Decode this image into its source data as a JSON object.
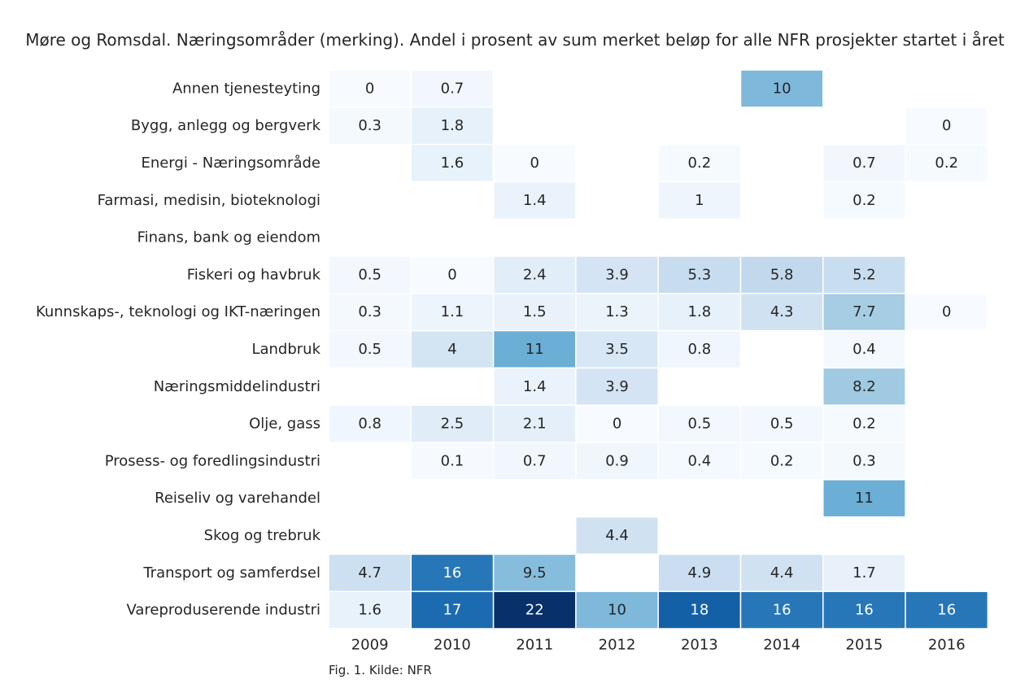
{
  "chart_data": {
    "type": "heatmap",
    "title": "Møre og Romsdal. Næringsområder (merking). Andel i prosent av sum merket beløp for alle NFR prosjekter startet i året",
    "caption": "Fig. 1. Kilde: NFR",
    "xlabel": "",
    "ylabel": "",
    "colormap": "Blues",
    "value_range": [
      0,
      22
    ],
    "grid": false,
    "x": [
      "2009",
      "2010",
      "2011",
      "2012",
      "2013",
      "2014",
      "2015",
      "2016"
    ],
    "y": [
      "Annen tjenesteyting",
      "Bygg, anlegg og bergverk",
      "Energi - Næringsområde",
      "Farmasi, medisin, bioteknologi",
      "Finans, bank og eiendom",
      "Fiskeri og havbruk",
      "Kunnskaps-, teknologi og IKT-næringen",
      "Landbruk",
      "Næringsmiddelindustri",
      "Olje, gass",
      "Prosess- og foredlingsindustri",
      "Reiseliv og varehandel",
      "Skog og trebruk",
      "Transport og samferdsel",
      "Vareproduserende industri"
    ],
    "values": [
      [
        0,
        0.7,
        null,
        null,
        null,
        10,
        null,
        null
      ],
      [
        0.3,
        1.8,
        null,
        null,
        null,
        null,
        null,
        0
      ],
      [
        null,
        1.6,
        0,
        null,
        0.2,
        null,
        0.7,
        0.2
      ],
      [
        null,
        null,
        1.4,
        null,
        1,
        null,
        0.2,
        null
      ],
      [
        null,
        null,
        null,
        null,
        null,
        null,
        null,
        null
      ],
      [
        0.5,
        0,
        2.4,
        3.9,
        5.3,
        5.8,
        5.2,
        null
      ],
      [
        0.3,
        1.1,
        1.5,
        1.3,
        1.8,
        4.3,
        7.7,
        0
      ],
      [
        0.5,
        4,
        11,
        3.5,
        0.8,
        null,
        0.4,
        null
      ],
      [
        null,
        null,
        1.4,
        3.9,
        null,
        null,
        8.2,
        null
      ],
      [
        0.8,
        2.5,
        2.1,
        0,
        0.5,
        0.5,
        0.2,
        null
      ],
      [
        null,
        0.1,
        0.7,
        0.9,
        0.4,
        0.2,
        0.3,
        null
      ],
      [
        null,
        null,
        null,
        null,
        null,
        null,
        11,
        null
      ],
      [
        null,
        null,
        null,
        4.4,
        null,
        null,
        null,
        null
      ],
      [
        4.7,
        16,
        9.5,
        null,
        4.9,
        4.4,
        1.7,
        null
      ],
      [
        1.6,
        17,
        22,
        10,
        18,
        16,
        16,
        16
      ]
    ]
  }
}
